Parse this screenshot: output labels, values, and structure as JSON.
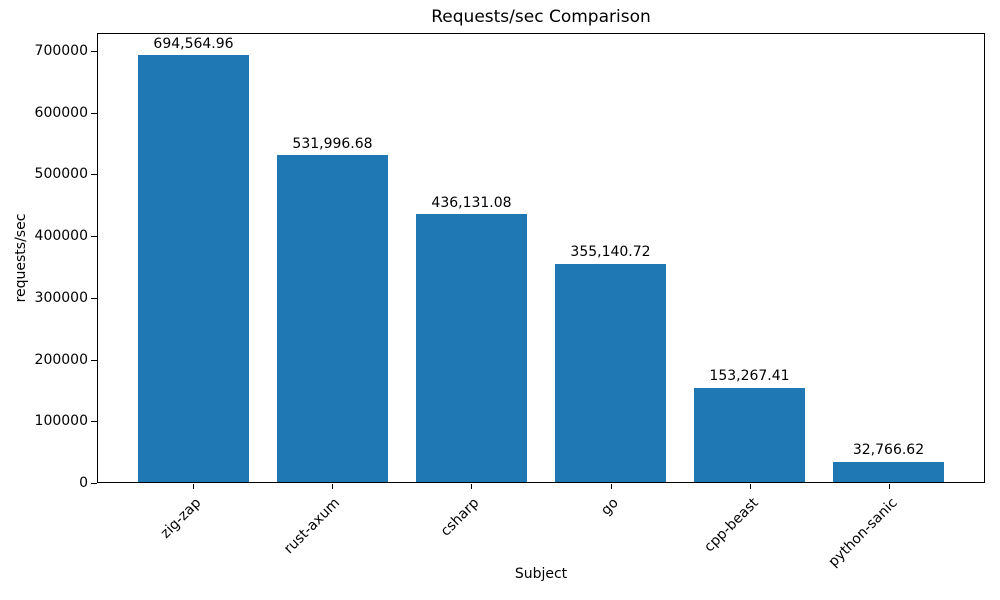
{
  "chart_data": {
    "type": "bar",
    "title": "Requests/sec Comparison",
    "xlabel": "Subject",
    "ylabel": "requests/sec",
    "categories": [
      "zig-zap",
      "rust-axum",
      "csharp",
      "go",
      "cpp-beast",
      "python-sanic"
    ],
    "values": [
      694564.96,
      531996.68,
      436131.08,
      355140.72,
      153267.41,
      32766.62
    ],
    "value_labels": [
      "694,564.96",
      "531,996.68",
      "436,131.08",
      "355,140.72",
      "153,267.41",
      "32,766.62"
    ],
    "yticks": [
      0,
      100000,
      200000,
      300000,
      400000,
      500000,
      600000,
      700000
    ],
    "ylim": [
      0,
      729293
    ],
    "bar_color": "#1f77b4",
    "text_color": "#000000",
    "grid": false,
    "legend": "none",
    "x_tick_rotation_deg": 45
  }
}
